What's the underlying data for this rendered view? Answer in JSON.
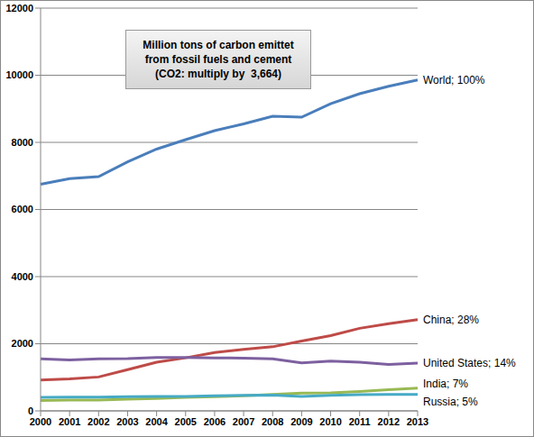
{
  "chart_data": {
    "type": "line",
    "title": "Million tons of carbon emittet\nfrom fossil fuels and cement\n(CO2: multiply by  3,664)",
    "categories": [
      "2000",
      "2001",
      "2002",
      "2003",
      "2004",
      "2005",
      "2006",
      "2007",
      "2008",
      "2009",
      "2010",
      "2011",
      "2012",
      "2013"
    ],
    "series": [
      {
        "name": "World; 100%",
        "color": "#4a7ebb",
        "values": [
          6750,
          6920,
          6980,
          7420,
          7800,
          8080,
          8350,
          8550,
          8780,
          8750,
          9150,
          9450,
          9670,
          9860
        ]
      },
      {
        "name": "China; 28%",
        "color": "#be4b48",
        "values": [
          920,
          950,
          1010,
          1230,
          1450,
          1580,
          1740,
          1830,
          1910,
          2080,
          2240,
          2460,
          2600,
          2720
        ]
      },
      {
        "name": "United States; 14%",
        "color": "#7d60a0",
        "values": [
          1550,
          1520,
          1550,
          1560,
          1590,
          1590,
          1580,
          1570,
          1550,
          1430,
          1480,
          1450,
          1380,
          1420
        ]
      },
      {
        "name": "India; 7%",
        "color": "#98b954",
        "values": [
          310,
          320,
          320,
          350,
          370,
          400,
          420,
          450,
          490,
          530,
          540,
          580,
          630,
          680
        ]
      },
      {
        "name": "Russia; 5%",
        "color": "#46aac5",
        "values": [
          400,
          410,
          410,
          420,
          430,
          430,
          450,
          460,
          470,
          430,
          460,
          480,
          490,
          490
        ]
      }
    ],
    "ylim": [
      0,
      12000
    ],
    "yticks": [
      0,
      2000,
      4000,
      6000,
      8000,
      10000,
      12000
    ],
    "grid": true
  }
}
